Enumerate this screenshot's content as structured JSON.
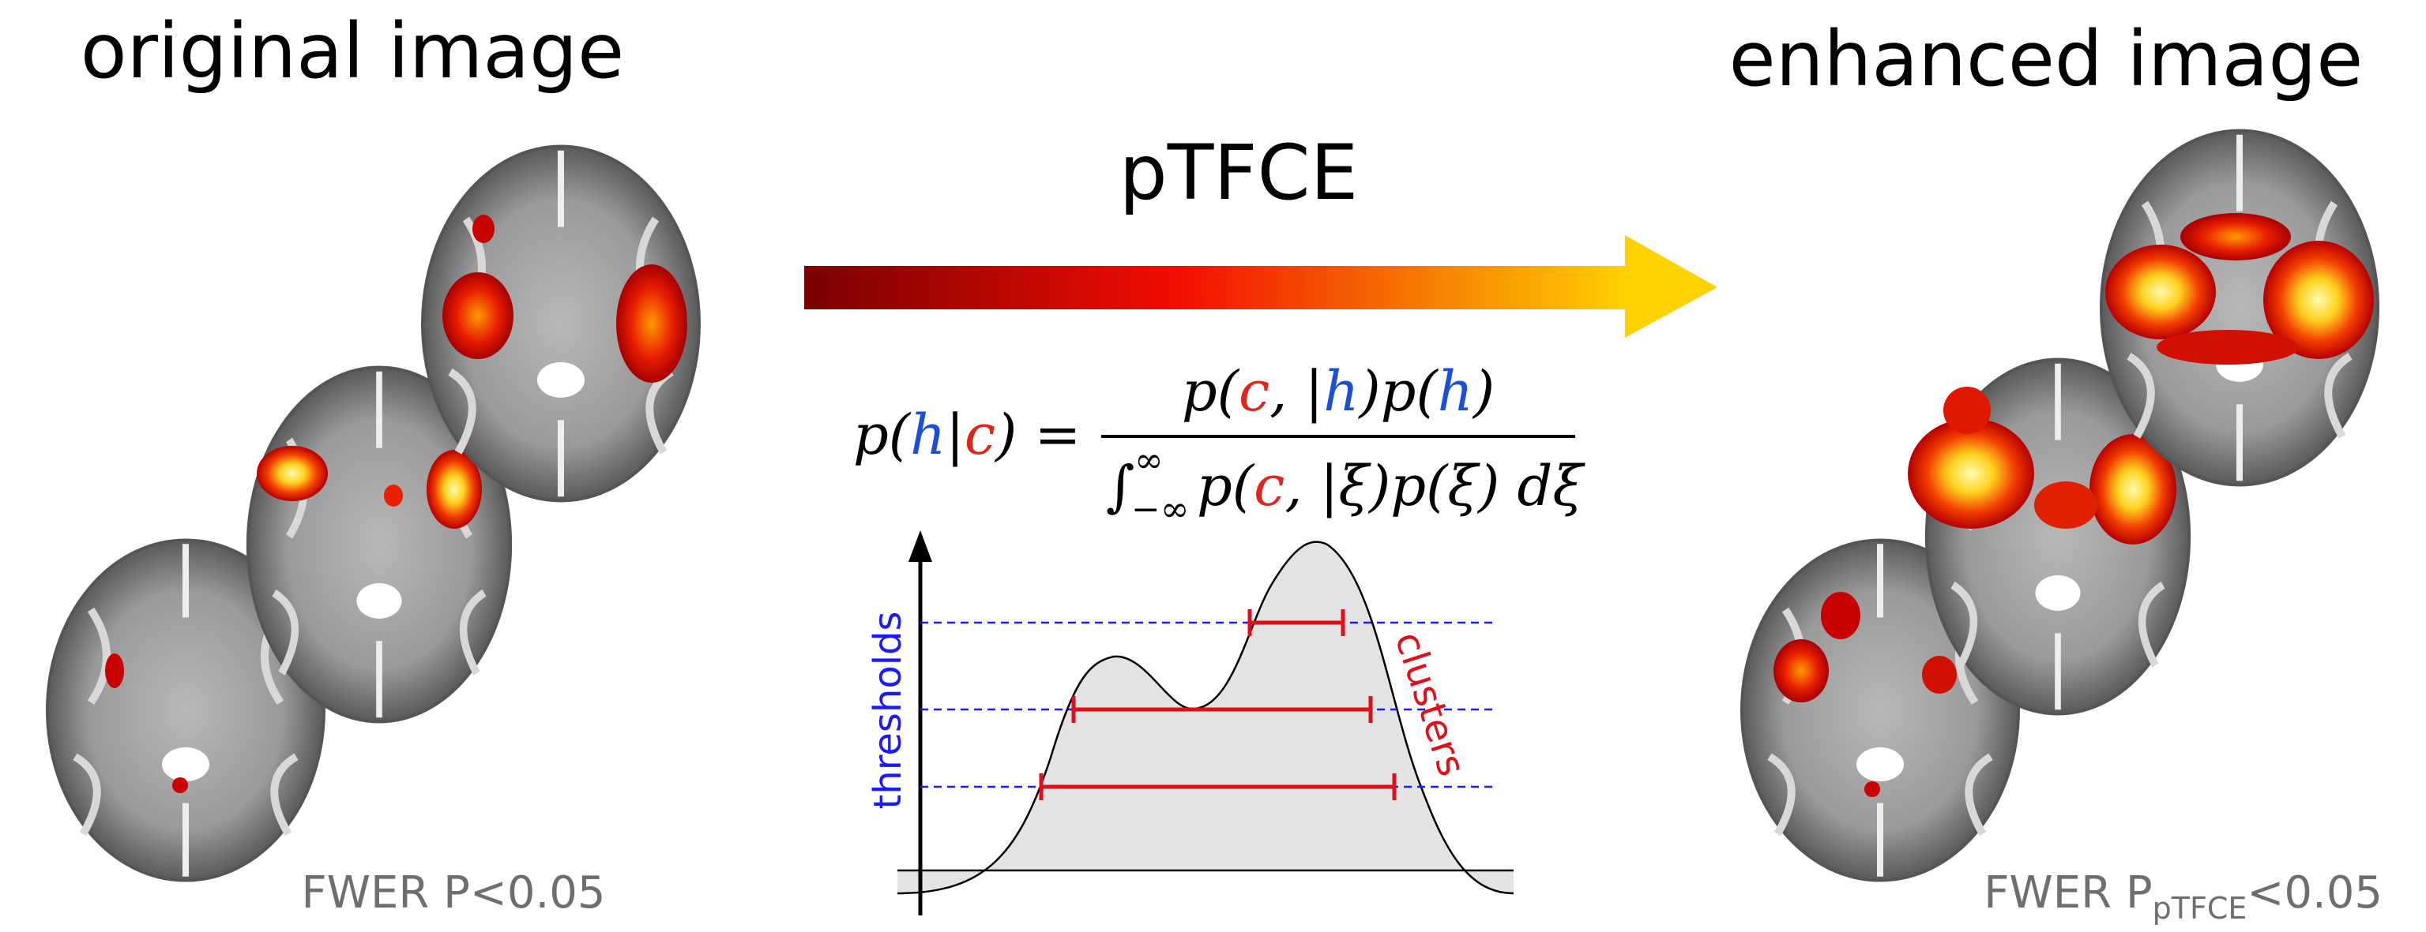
{
  "left_title": "original image",
  "right_title": "enhanced image",
  "method": "pTFCE",
  "formula": {
    "lhs": [
      "p(",
      "h",
      "|",
      "c",
      ") ="
    ],
    "numerator": [
      "p(",
      "c",
      ", |",
      "h",
      ")p(",
      "h",
      ")"
    ],
    "denominator": {
      "integral": "∫",
      "lower": "−∞",
      "upper": "∞",
      "body": [
        "p(",
        "c",
        ", |ξ)p(ξ) dξ"
      ]
    }
  },
  "graph": {
    "y_label": "thresholds",
    "cluster_label": "clusters"
  },
  "left_caption": "FWER P<0.05",
  "right_caption": {
    "main": "FWER P",
    "subscript": "pTFCE",
    "rest": "<0.05"
  }
}
